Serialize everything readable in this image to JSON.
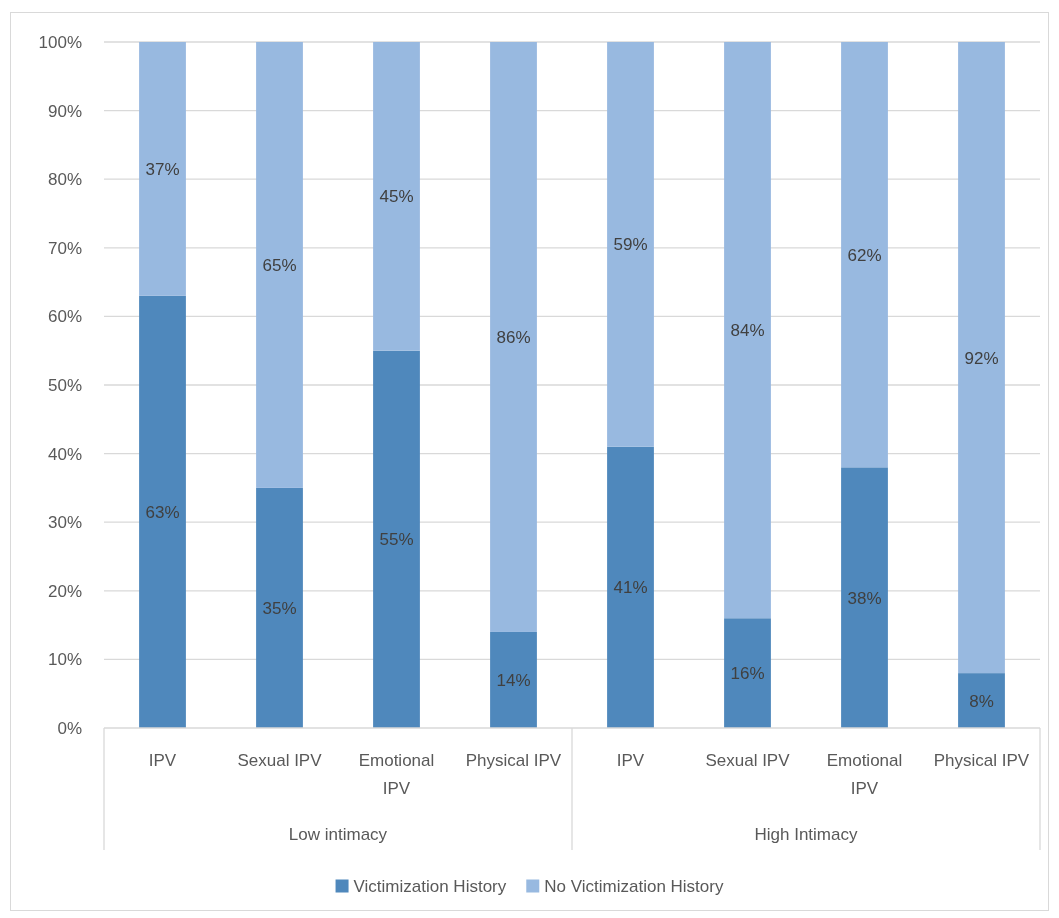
{
  "chart_data": {
    "type": "bar",
    "stacked": true,
    "categories": [
      "IPV",
      "Sexual IPV",
      "Emotional IPV",
      "Physical IPV",
      "IPV",
      "Sexual IPV",
      "Emotional IPV",
      "Physical IPV"
    ],
    "series": [
      {
        "name": "Victimization History",
        "color": "#4f88bc",
        "values": [
          63,
          35,
          55,
          14,
          41,
          16,
          38,
          8
        ],
        "value_labels": [
          "63%",
          "35%",
          "55%",
          "14%",
          "41%",
          "16%",
          "38%",
          "8%"
        ]
      },
      {
        "name": "No Victimization History",
        "color": "#98b9e0",
        "values": [
          37,
          65,
          45,
          86,
          59,
          84,
          62,
          92
        ],
        "value_labels": [
          "37%",
          "65%",
          "45%",
          "86%",
          "59%",
          "84%",
          "62%",
          "92%"
        ]
      }
    ],
    "ylim": [
      0,
      100
    ],
    "yticks": [
      {
        "value": 0,
        "label": "0%"
      },
      {
        "value": 10,
        "label": "10%"
      },
      {
        "value": 20,
        "label": "20%"
      },
      {
        "value": 30,
        "label": "30%"
      },
      {
        "value": 40,
        "label": "40%"
      },
      {
        "value": 50,
        "label": "50%"
      },
      {
        "value": 60,
        "label": "60%"
      },
      {
        "value": 70,
        "label": "70%"
      },
      {
        "value": 80,
        "label": "80%"
      },
      {
        "value": 90,
        "label": "90%"
      },
      {
        "value": 100,
        "label": "100%"
      }
    ],
    "grid": "y",
    "legend": "bottom",
    "annotations": [
      "Low intimacy",
      "High Intimacy"
    ]
  }
}
